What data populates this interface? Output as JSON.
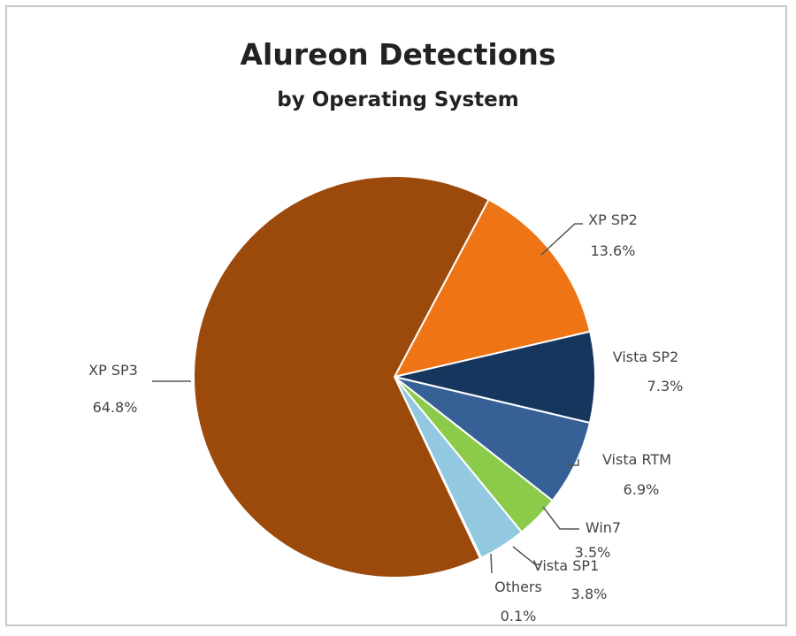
{
  "chart_data": {
    "type": "pie",
    "title": "Alureon Detections",
    "subtitle": "by Operating System",
    "slices": [
      {
        "label": "XP SP3",
        "value": 64.8,
        "value_label": "64.8%",
        "color": "#9c4a0c"
      },
      {
        "label": "XP SP2",
        "value": 13.6,
        "value_label": "13.6%",
        "color": "#ee7416"
      },
      {
        "label": "Vista SP2",
        "value": 7.3,
        "value_label": "7.3%",
        "color": "#17365d"
      },
      {
        "label": "Vista RTM",
        "value": 6.9,
        "value_label": "6.9%",
        "color": "#376196"
      },
      {
        "label": "Win7",
        "value": 3.5,
        "value_label": "3.5%",
        "color": "#8ccb4a"
      },
      {
        "label": "Vista SP1",
        "value": 3.8,
        "value_label": "3.8%",
        "color": "#92c9e0"
      },
      {
        "label": "Others",
        "value": 0.1,
        "value_label": "0.1%",
        "color": "#5f8ec2"
      }
    ],
    "data_labels": true,
    "legend": "none"
  }
}
